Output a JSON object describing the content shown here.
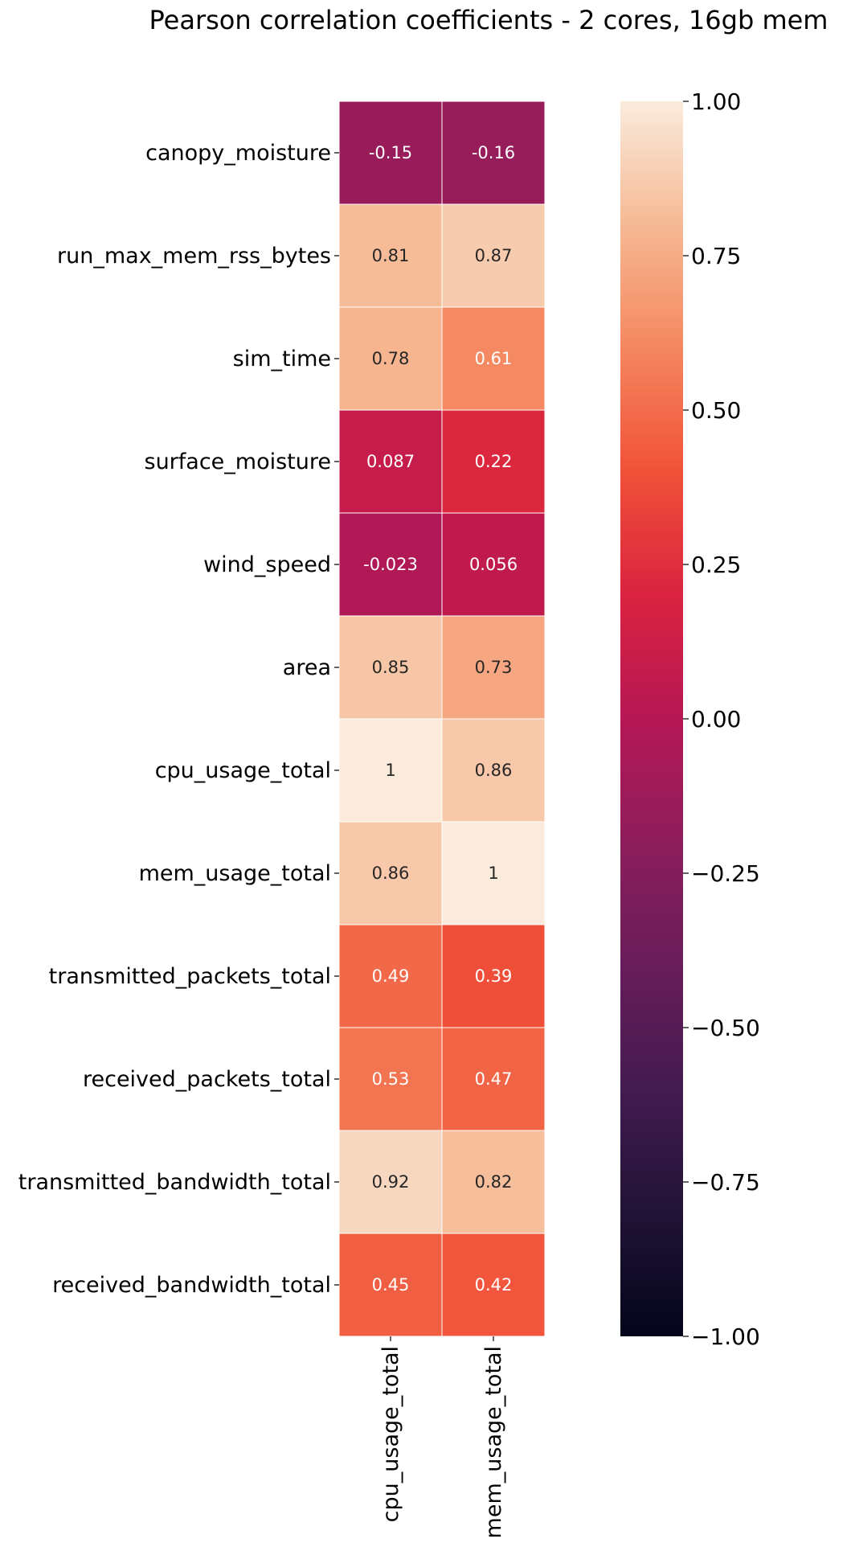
{
  "chart_data": {
    "type": "heatmap",
    "title": "Pearson correlation coefficients - 2 cores, 16gb mem",
    "rows": [
      "canopy_moisture",
      "run_max_mem_rss_bytes",
      "sim_time",
      "surface_moisture",
      "wind_speed",
      "area",
      "cpu_usage_total",
      "mem_usage_total",
      "transmitted_packets_total",
      "received_packets_total",
      "transmitted_bandwidth_total",
      "received_bandwidth_total"
    ],
    "columns": [
      "cpu_usage_total",
      "mem_usage_total"
    ],
    "values": [
      [
        -0.15,
        -0.16
      ],
      [
        0.81,
        0.87
      ],
      [
        0.78,
        0.61
      ],
      [
        0.087,
        0.22
      ],
      [
        -0.023,
        0.056
      ],
      [
        0.85,
        0.73
      ],
      [
        1,
        0.86
      ],
      [
        0.86,
        1
      ],
      [
        0.49,
        0.39
      ],
      [
        0.53,
        0.47
      ],
      [
        0.92,
        0.82
      ],
      [
        0.45,
        0.42
      ]
    ],
    "labels": [
      [
        "-0.15",
        "-0.16"
      ],
      [
        "0.81",
        "0.87"
      ],
      [
        "0.78",
        "0.61"
      ],
      [
        "0.087",
        "0.22"
      ],
      [
        "-0.023",
        "0.056"
      ],
      [
        "0.85",
        "0.73"
      ],
      [
        "1",
        "0.86"
      ],
      [
        "0.86",
        "1"
      ],
      [
        "0.49",
        "0.39"
      ],
      [
        "0.53",
        "0.47"
      ],
      [
        "0.92",
        "0.82"
      ],
      [
        "0.45",
        "0.42"
      ]
    ],
    "colorbar": {
      "range": [
        -1,
        1
      ],
      "ticks": [
        1,
        0.75,
        0.5,
        0.25,
        0,
        -0.25,
        -0.5,
        -0.75,
        -1
      ],
      "tick_labels": [
        "1.00",
        "0.75",
        "0.50",
        "0.25",
        "0.00",
        "−0.25",
        "−0.50",
        "−0.75",
        "−1.00"
      ],
      "colormap": "rocket",
      "low_color": "#03051a",
      "high_color": "#faebdd"
    }
  }
}
